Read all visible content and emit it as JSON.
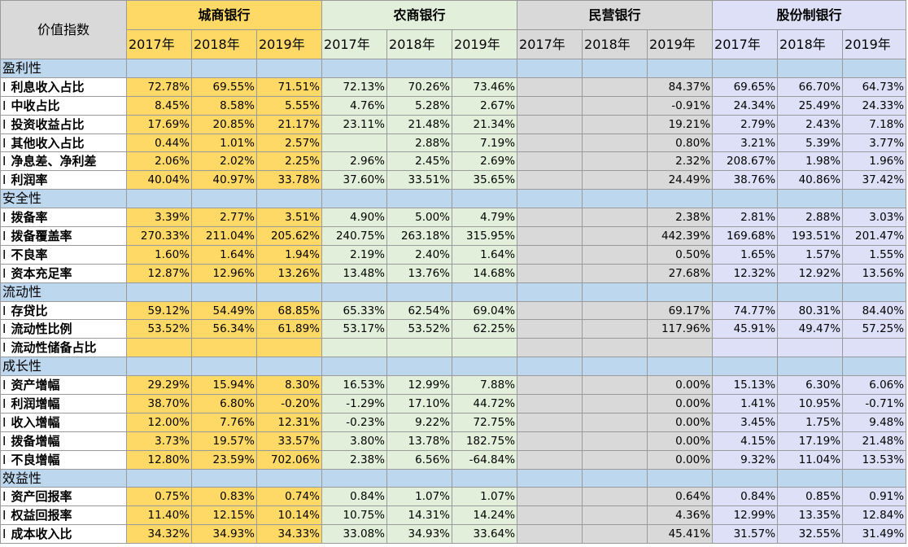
{
  "header": {
    "corner_label": "价值指数",
    "groups": [
      "城商银行",
      "农商银行",
      "民营银行",
      "股份制银行"
    ],
    "years": [
      "2017年",
      "2018年",
      "2019年"
    ]
  },
  "group_colors": [
    "#ffd966",
    "#e2efda",
    "#d9d9d9",
    "#dde0f6"
  ],
  "section_color": "#bdd7ee",
  "row_marker": "I",
  "sections": [
    {
      "title": "盈利性",
      "rows": [
        {
          "label": "利息收入占比",
          "values": [
            "72.78%",
            "69.55%",
            "71.51%",
            "72.13%",
            "70.26%",
            "73.46%",
            "",
            "",
            "84.37%",
            "69.65%",
            "66.70%",
            "64.73%"
          ]
        },
        {
          "label": "中收占比",
          "values": [
            "8.45%",
            "8.58%",
            "5.55%",
            "4.76%",
            "5.28%",
            "2.67%",
            "",
            "",
            "-0.91%",
            "24.34%",
            "25.49%",
            "24.33%"
          ]
        },
        {
          "label": "投资收益占比",
          "values": [
            "17.69%",
            "20.85%",
            "21.17%",
            "23.11%",
            "21.48%",
            "21.34%",
            "",
            "",
            "19.21%",
            "2.79%",
            "2.43%",
            "7.18%"
          ]
        },
        {
          "label": "其他收入占比",
          "values": [
            "0.44%",
            "1.01%",
            "2.57%",
            "",
            "2.88%",
            "7.19%",
            "",
            "",
            "0.80%",
            "3.21%",
            "5.39%",
            "3.77%"
          ]
        },
        {
          "label": "净息差、净利差",
          "values": [
            "2.06%",
            "2.02%",
            "2.25%",
            "2.96%",
            "2.45%",
            "2.69%",
            "",
            "",
            "2.32%",
            "208.67%",
            "1.98%",
            "1.96%"
          ]
        },
        {
          "label": "利润率",
          "values": [
            "40.04%",
            "40.97%",
            "33.78%",
            "37.60%",
            "33.51%",
            "35.65%",
            "",
            "",
            "24.49%",
            "38.76%",
            "40.86%",
            "37.42%"
          ]
        }
      ]
    },
    {
      "title": "安全性",
      "rows": [
        {
          "label": "拨备率",
          "values": [
            "3.39%",
            "2.77%",
            "3.51%",
            "4.90%",
            "5.00%",
            "4.79%",
            "",
            "",
            "2.38%",
            "2.81%",
            "2.88%",
            "3.03%"
          ]
        },
        {
          "label": "拨备覆盖率",
          "values": [
            "270.33%",
            "211.04%",
            "205.62%",
            "240.75%",
            "263.18%",
            "315.95%",
            "",
            "",
            "442.39%",
            "169.68%",
            "193.51%",
            "201.47%"
          ]
        },
        {
          "label": "不良率",
          "values": [
            "1.60%",
            "1.64%",
            "1.94%",
            "2.19%",
            "2.40%",
            "1.64%",
            "",
            "",
            "0.50%",
            "1.65%",
            "1.57%",
            "1.55%"
          ]
        },
        {
          "label": "资本充足率",
          "values": [
            "12.87%",
            "12.96%",
            "13.26%",
            "13.48%",
            "13.76%",
            "14.68%",
            "",
            "",
            "27.68%",
            "12.32%",
            "12.92%",
            "13.56%"
          ]
        }
      ]
    },
    {
      "title": "流动性",
      "rows": [
        {
          "label": "存贷比",
          "values": [
            "59.12%",
            "54.49%",
            "68.85%",
            "65.33%",
            "62.54%",
            "69.04%",
            "",
            "",
            "69.17%",
            "74.77%",
            "80.31%",
            "84.40%"
          ]
        },
        {
          "label": "流动性比例",
          "values": [
            "53.52%",
            "56.34%",
            "61.89%",
            "53.17%",
            "53.52%",
            "62.25%",
            "",
            "",
            "117.96%",
            "45.91%",
            "49.47%",
            "57.25%"
          ]
        },
        {
          "label": "流动性储备占比",
          "values": [
            "",
            "",
            "",
            "",
            "",
            "",
            "",
            "",
            "",
            "",
            "",
            ""
          ]
        }
      ]
    },
    {
      "title": "成长性",
      "rows": [
        {
          "label": "资产增幅",
          "values": [
            "29.29%",
            "15.94%",
            "8.30%",
            "16.53%",
            "12.99%",
            "7.88%",
            "",
            "",
            "0.00%",
            "15.13%",
            "6.30%",
            "6.06%"
          ]
        },
        {
          "label": "利润增幅",
          "values": [
            "38.70%",
            "6.80%",
            "-0.20%",
            "-1.29%",
            "17.10%",
            "44.72%",
            "",
            "",
            "0.00%",
            "1.41%",
            "10.95%",
            "-0.71%"
          ]
        },
        {
          "label": "收入增幅",
          "values": [
            "12.00%",
            "7.76%",
            "12.31%",
            "-0.23%",
            "9.22%",
            "72.75%",
            "",
            "",
            "0.00%",
            "3.45%",
            "1.75%",
            "9.48%"
          ]
        },
        {
          "label": "拨备增幅",
          "values": [
            "3.73%",
            "19.57%",
            "33.57%",
            "3.80%",
            "13.78%",
            "182.75%",
            "",
            "",
            "0.00%",
            "4.15%",
            "17.19%",
            "21.48%"
          ]
        },
        {
          "label": "不良增幅",
          "values": [
            "12.80%",
            "23.59%",
            "702.06%",
            "2.38%",
            "6.56%",
            "-64.84%",
            "",
            "",
            "0.00%",
            "9.32%",
            "11.04%",
            "13.53%"
          ]
        }
      ]
    },
    {
      "title": "效益性",
      "rows": [
        {
          "label": "资产回报率",
          "values": [
            "0.75%",
            "0.83%",
            "0.74%",
            "0.84%",
            "1.07%",
            "1.07%",
            "",
            "",
            "0.64%",
            "0.84%",
            "0.85%",
            "0.91%"
          ]
        },
        {
          "label": "权益回报率",
          "values": [
            "11.40%",
            "12.15%",
            "10.14%",
            "10.75%",
            "14.31%",
            "14.24%",
            "",
            "",
            "4.36%",
            "12.99%",
            "13.35%",
            "12.84%"
          ]
        },
        {
          "label": "成本收入比",
          "values": [
            "34.32%",
            "34.93%",
            "34.33%",
            "33.08%",
            "34.93%",
            "33.64%",
            "",
            "",
            "45.41%",
            "31.57%",
            "32.55%",
            "31.49%"
          ]
        }
      ]
    }
  ]
}
